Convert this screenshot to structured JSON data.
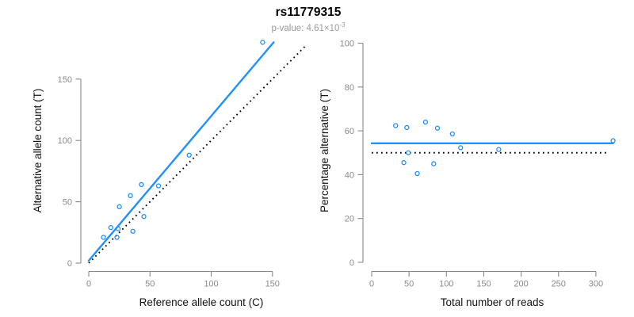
{
  "header": {
    "title": "rs11779315",
    "subtitle_text": "p-value: 4.61×10",
    "subtitle_exponent": "-3"
  },
  "colors": {
    "accent": "#1E90FF",
    "axis": "#888888",
    "tick_label": "#8a8a8a",
    "axis_title": "#111111",
    "dotted_line": "#000000",
    "background": "#ffffff"
  },
  "chart_data": [
    {
      "type": "scatter",
      "name": "allele-count-scatter",
      "xlabel": "Reference allele count (C)",
      "ylabel": "Alternative allele count (T)",
      "xticks": [
        0,
        50,
        100,
        150
      ],
      "yticks": [
        0,
        50,
        100,
        150
      ],
      "xlim": [
        0,
        180
      ],
      "ylim": [
        0,
        180
      ],
      "grid": false,
      "legend": false,
      "marker": "open-circle",
      "points": [
        [
          12,
          21
        ],
        [
          18,
          29
        ],
        [
          23,
          21
        ],
        [
          24,
          28
        ],
        [
          25,
          46
        ],
        [
          34,
          55
        ],
        [
          36,
          26
        ],
        [
          43,
          64
        ],
        [
          45,
          38
        ],
        [
          57,
          63
        ],
        [
          82,
          88
        ],
        [
          142,
          180
        ]
      ],
      "lines": [
        {
          "name": "regression-line",
          "style": "solid",
          "color": "accent",
          "x1": 0,
          "y1": 2,
          "x2": 151,
          "y2": 180
        },
        {
          "name": "identity-line",
          "style": "dotted",
          "color": "dotted_line",
          "x1": 0,
          "y1": 0,
          "x2": 178,
          "y2": 178
        }
      ]
    },
    {
      "type": "scatter",
      "name": "percentage-vs-reads-scatter",
      "xlabel": "Total number of reads",
      "ylabel": "Percentage alternative (T)",
      "xticks": [
        0,
        50,
        100,
        150,
        200,
        250,
        300
      ],
      "yticks": [
        0,
        20,
        40,
        60,
        80,
        100
      ],
      "xlim": [
        0,
        330
      ],
      "ylim": [
        0,
        104
      ],
      "grid": false,
      "legend": false,
      "marker": "open-circle",
      "points": [
        [
          32,
          62.4
        ],
        [
          43,
          45.5
        ],
        [
          47,
          61.5
        ],
        [
          49,
          50
        ],
        [
          61,
          40.5
        ],
        [
          72,
          64
        ],
        [
          83,
          45
        ],
        [
          88,
          61.2
        ],
        [
          108,
          58.6
        ],
        [
          119,
          52.3
        ],
        [
          170,
          51.5
        ],
        [
          323,
          55.5
        ]
      ],
      "lines": [
        {
          "name": "mean-percentage-line",
          "style": "solid",
          "color": "accent",
          "x1": 0,
          "y1": 54.3,
          "x2": 323,
          "y2": 54.3
        },
        {
          "name": "fifty-percent-line",
          "style": "dotted",
          "color": "dotted_line",
          "x1": 0,
          "y1": 50,
          "x2": 318,
          "y2": 50
        }
      ]
    }
  ]
}
